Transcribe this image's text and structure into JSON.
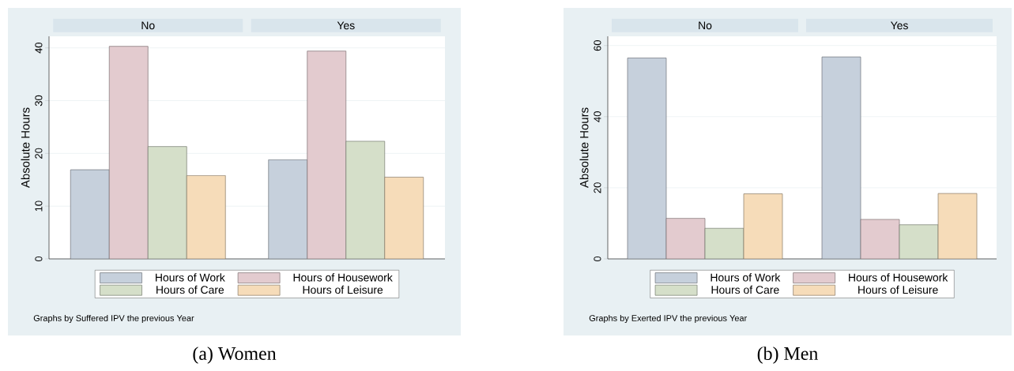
{
  "chart_data": [
    {
      "type": "bar",
      "ylabel": "Absolute Hours",
      "categories": [
        "No",
        "Yes"
      ],
      "ylim": [
        0,
        42.2
      ],
      "yticks": [
        0,
        10,
        20,
        30,
        40
      ],
      "grid": "y",
      "legend": "bottom",
      "series": [
        {
          "name": "Hours of Work",
          "color": "#c6d0dc",
          "values": [
            16.9,
            18.8
          ]
        },
        {
          "name": "Hours of Housework",
          "color": "#e3cbcf",
          "values": [
            40.3,
            39.4
          ]
        },
        {
          "name": "Hours of Care",
          "color": "#d5dfc9",
          "values": [
            21.3,
            22.3
          ]
        },
        {
          "name": "Hours of Leisure",
          "color": "#f6dcb9",
          "values": [
            15.8,
            15.5
          ]
        }
      ],
      "annotations": [
        "Graphs by Suffered IPV the previous Year",
        "(a) Women"
      ]
    },
    {
      "type": "bar",
      "ylabel": "Absolute Hours",
      "categories": [
        "No",
        "Yes"
      ],
      "ylim": [
        0,
        62.6
      ],
      "yticks": [
        0,
        20,
        40,
        60
      ],
      "grid": "y",
      "legend": "bottom",
      "series": [
        {
          "name": "Hours of Work",
          "color": "#c6d0dc",
          "values": [
            56.5,
            56.8
          ]
        },
        {
          "name": "Hours of Housework",
          "color": "#e3cbcf",
          "values": [
            11.4,
            11.1
          ]
        },
        {
          "name": "Hours of Care",
          "color": "#d5dfc9",
          "values": [
            8.6,
            9.6
          ]
        },
        {
          "name": "Hours of Leisure",
          "color": "#f6dcb9",
          "values": [
            18.3,
            18.4
          ]
        }
      ],
      "annotations": [
        "Graphs by Exerted IPV the previous Year",
        "(b) Men"
      ]
    }
  ]
}
